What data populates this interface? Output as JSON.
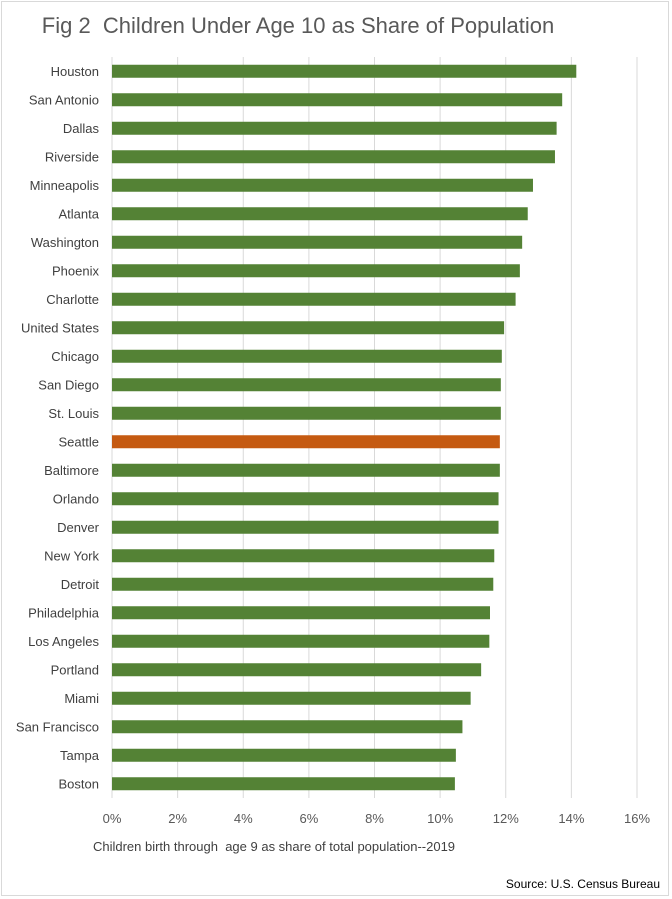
{
  "chart_data": {
    "type": "bar",
    "orientation": "horizontal",
    "title": "Fig 2  Children Under Age 10 as Share of Population",
    "xlabel": "Children birth through  age 9 as share of total population--2019",
    "ylabel": "",
    "xlim": [
      0,
      0.16
    ],
    "x_ticks": [
      0,
      0.02,
      0.04,
      0.06,
      0.08,
      0.1,
      0.12,
      0.14,
      0.16
    ],
    "x_tick_labels": [
      "0%",
      "2%",
      "4%",
      "6%",
      "8%",
      "10%",
      "12%",
      "14%",
      "16%"
    ],
    "grid": "vertical",
    "categories": [
      "Houston",
      "San Antonio",
      "Dallas",
      "Riverside",
      "Minneapolis",
      "Atlanta",
      "Washington",
      "Phoenix",
      "Charlotte",
      "United States",
      "Chicago",
      "San Diego",
      "St. Louis",
      "Seattle",
      "Baltimore",
      "Orlando",
      "Denver",
      "New York",
      "Detroit",
      "Philadelphia",
      "Los Angeles",
      "Portland",
      "Miami",
      "San Francisco",
      "Tampa",
      "Boston"
    ],
    "values": [
      0.1415,
      0.1372,
      0.1355,
      0.135,
      0.1283,
      0.1267,
      0.125,
      0.1243,
      0.123,
      0.1195,
      0.1188,
      0.1185,
      0.1185,
      0.1182,
      0.1182,
      0.1178,
      0.1178,
      0.1165,
      0.1162,
      0.1152,
      0.115,
      0.1125,
      0.1093,
      0.1068,
      0.1048,
      0.1045
    ],
    "highlight": "Seattle",
    "colors": {
      "bar": "#548235",
      "highlight": "#c55a11",
      "grid": "#d9d9d9"
    },
    "source": "Source: U.S. Census Bureau"
  }
}
